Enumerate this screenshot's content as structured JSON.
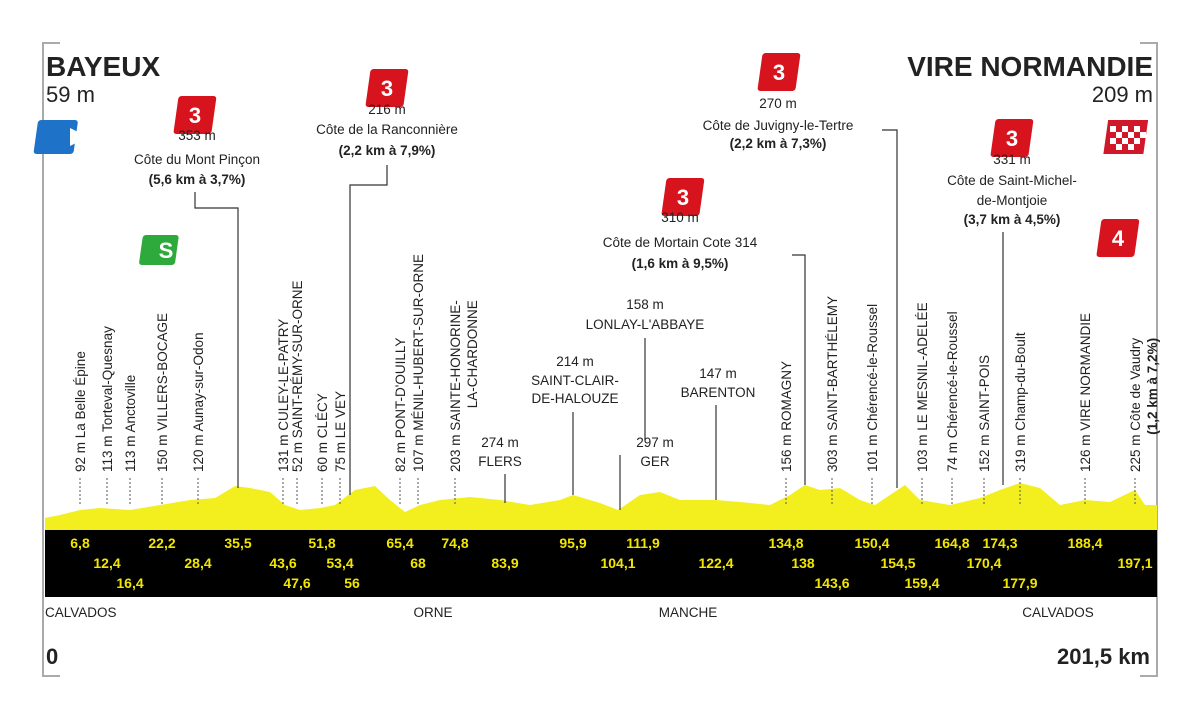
{
  "start": {
    "name": "BAYEUX",
    "altitude": "59 m"
  },
  "finish": {
    "name": "VIRE NORMANDIE",
    "altitude": "209 m"
  },
  "departments": [
    "CALVADOS",
    "ORNE",
    "MANCHE",
    "CALVADOS"
  ],
  "distance": {
    "start": "0",
    "end": "201,5 km"
  },
  "points": [
    {
      "km": "6,8",
      "label": "92 m La Belle Épine"
    },
    {
      "km": "12,4",
      "label": "113 m Torteval-Quesnay"
    },
    {
      "km": "16,4",
      "label": "113 m Anctoville"
    },
    {
      "km": "22,2",
      "label": "150 m VILLERS-BOCAGE",
      "sprint": "S"
    },
    {
      "km": "28,4",
      "label": "120 m Aunay-sur-Odon"
    },
    {
      "km": "35,5",
      "category": "3",
      "altitude": "353 m",
      "name": "Côte du Mont Pinçon",
      "detail": "(5,6 km à 3,7%)"
    },
    {
      "km": "43,6",
      "label": "131 m CULEY-LE-PATRY"
    },
    {
      "km": "47,6",
      "label": "52 m SAINT-RÉMY-SUR-ORNE"
    },
    {
      "km": "51,8",
      "label": "60 m CLÉCY"
    },
    {
      "km": "53,4",
      "label": "75 m LE VEY"
    },
    {
      "km": "56",
      "category": "3",
      "altitude": "216 m",
      "name": "Côte de la Ranconnière",
      "detail": "(2,2 km à 7,9%)"
    },
    {
      "km": "65,4",
      "label": "82 m PONT-D'OUILLY"
    },
    {
      "km": "68",
      "label": "107 m MÉNIL-HUBERT-SUR-ORNE"
    },
    {
      "km": "74,8",
      "label": "203 m SAINTE-HONORINE-",
      "label2": "LA-CHARDONNE"
    },
    {
      "km": "83,9",
      "altitude": "274 m",
      "name": "FLERS"
    },
    {
      "km": "95,9",
      "altitude": "214 m",
      "name": "SAINT-CLAIR-",
      "name2": "DE-HALOUZE"
    },
    {
      "km": "104,1",
      "altitude": "158 m",
      "name": "LONLAY-L'ABBAYE"
    },
    {
      "km": "111,9",
      "altitude": "297 m",
      "name": "GER"
    },
    {
      "km": "122,4",
      "altitude": "147 m",
      "name": "BARENTON"
    },
    {
      "km": "134,8",
      "label": "156 m ROMAGNY"
    },
    {
      "km": "138",
      "category": "3",
      "altitude": "310 m",
      "name": "Côte de Mortain Cote 314",
      "detail": "(1,6 km à 9,5%)"
    },
    {
      "km": "143,6",
      "label": "303 m SAINT-BARTHÉLEMY"
    },
    {
      "km": "150,4",
      "label": "101 m Chérencé-le-Roussel"
    },
    {
      "km": "154,5",
      "category": "3",
      "altitude": "270 m",
      "name": "Côte de Juvigny-le-Tertre",
      "detail": "(2,2 km à 7,3%)"
    },
    {
      "km": "159,4",
      "label": "103 m LE MESNIL-ADELÉE"
    },
    {
      "km": "164,8",
      "label": "74 m Chérencé-le-Roussel"
    },
    {
      "km": "170,4",
      "label": "152 m SAINT-POIS"
    },
    {
      "km": "174,3",
      "category": "3",
      "altitude": "331 m",
      "name": "Côte de Saint-Michel-",
      "name2": "de-Montjoie",
      "detail": "(3,7 km à 4,5%)"
    },
    {
      "km": "177,9",
      "label": "319 m Champ-du-Boult"
    },
    {
      "km": "188,4",
      "label": "126 m VIRE NORMANDIE"
    },
    {
      "km": "197,1",
      "category": "4",
      "label": "225 m Côte de Vaudry",
      "label2": "(1,2 km à 7,2%)"
    }
  ]
}
